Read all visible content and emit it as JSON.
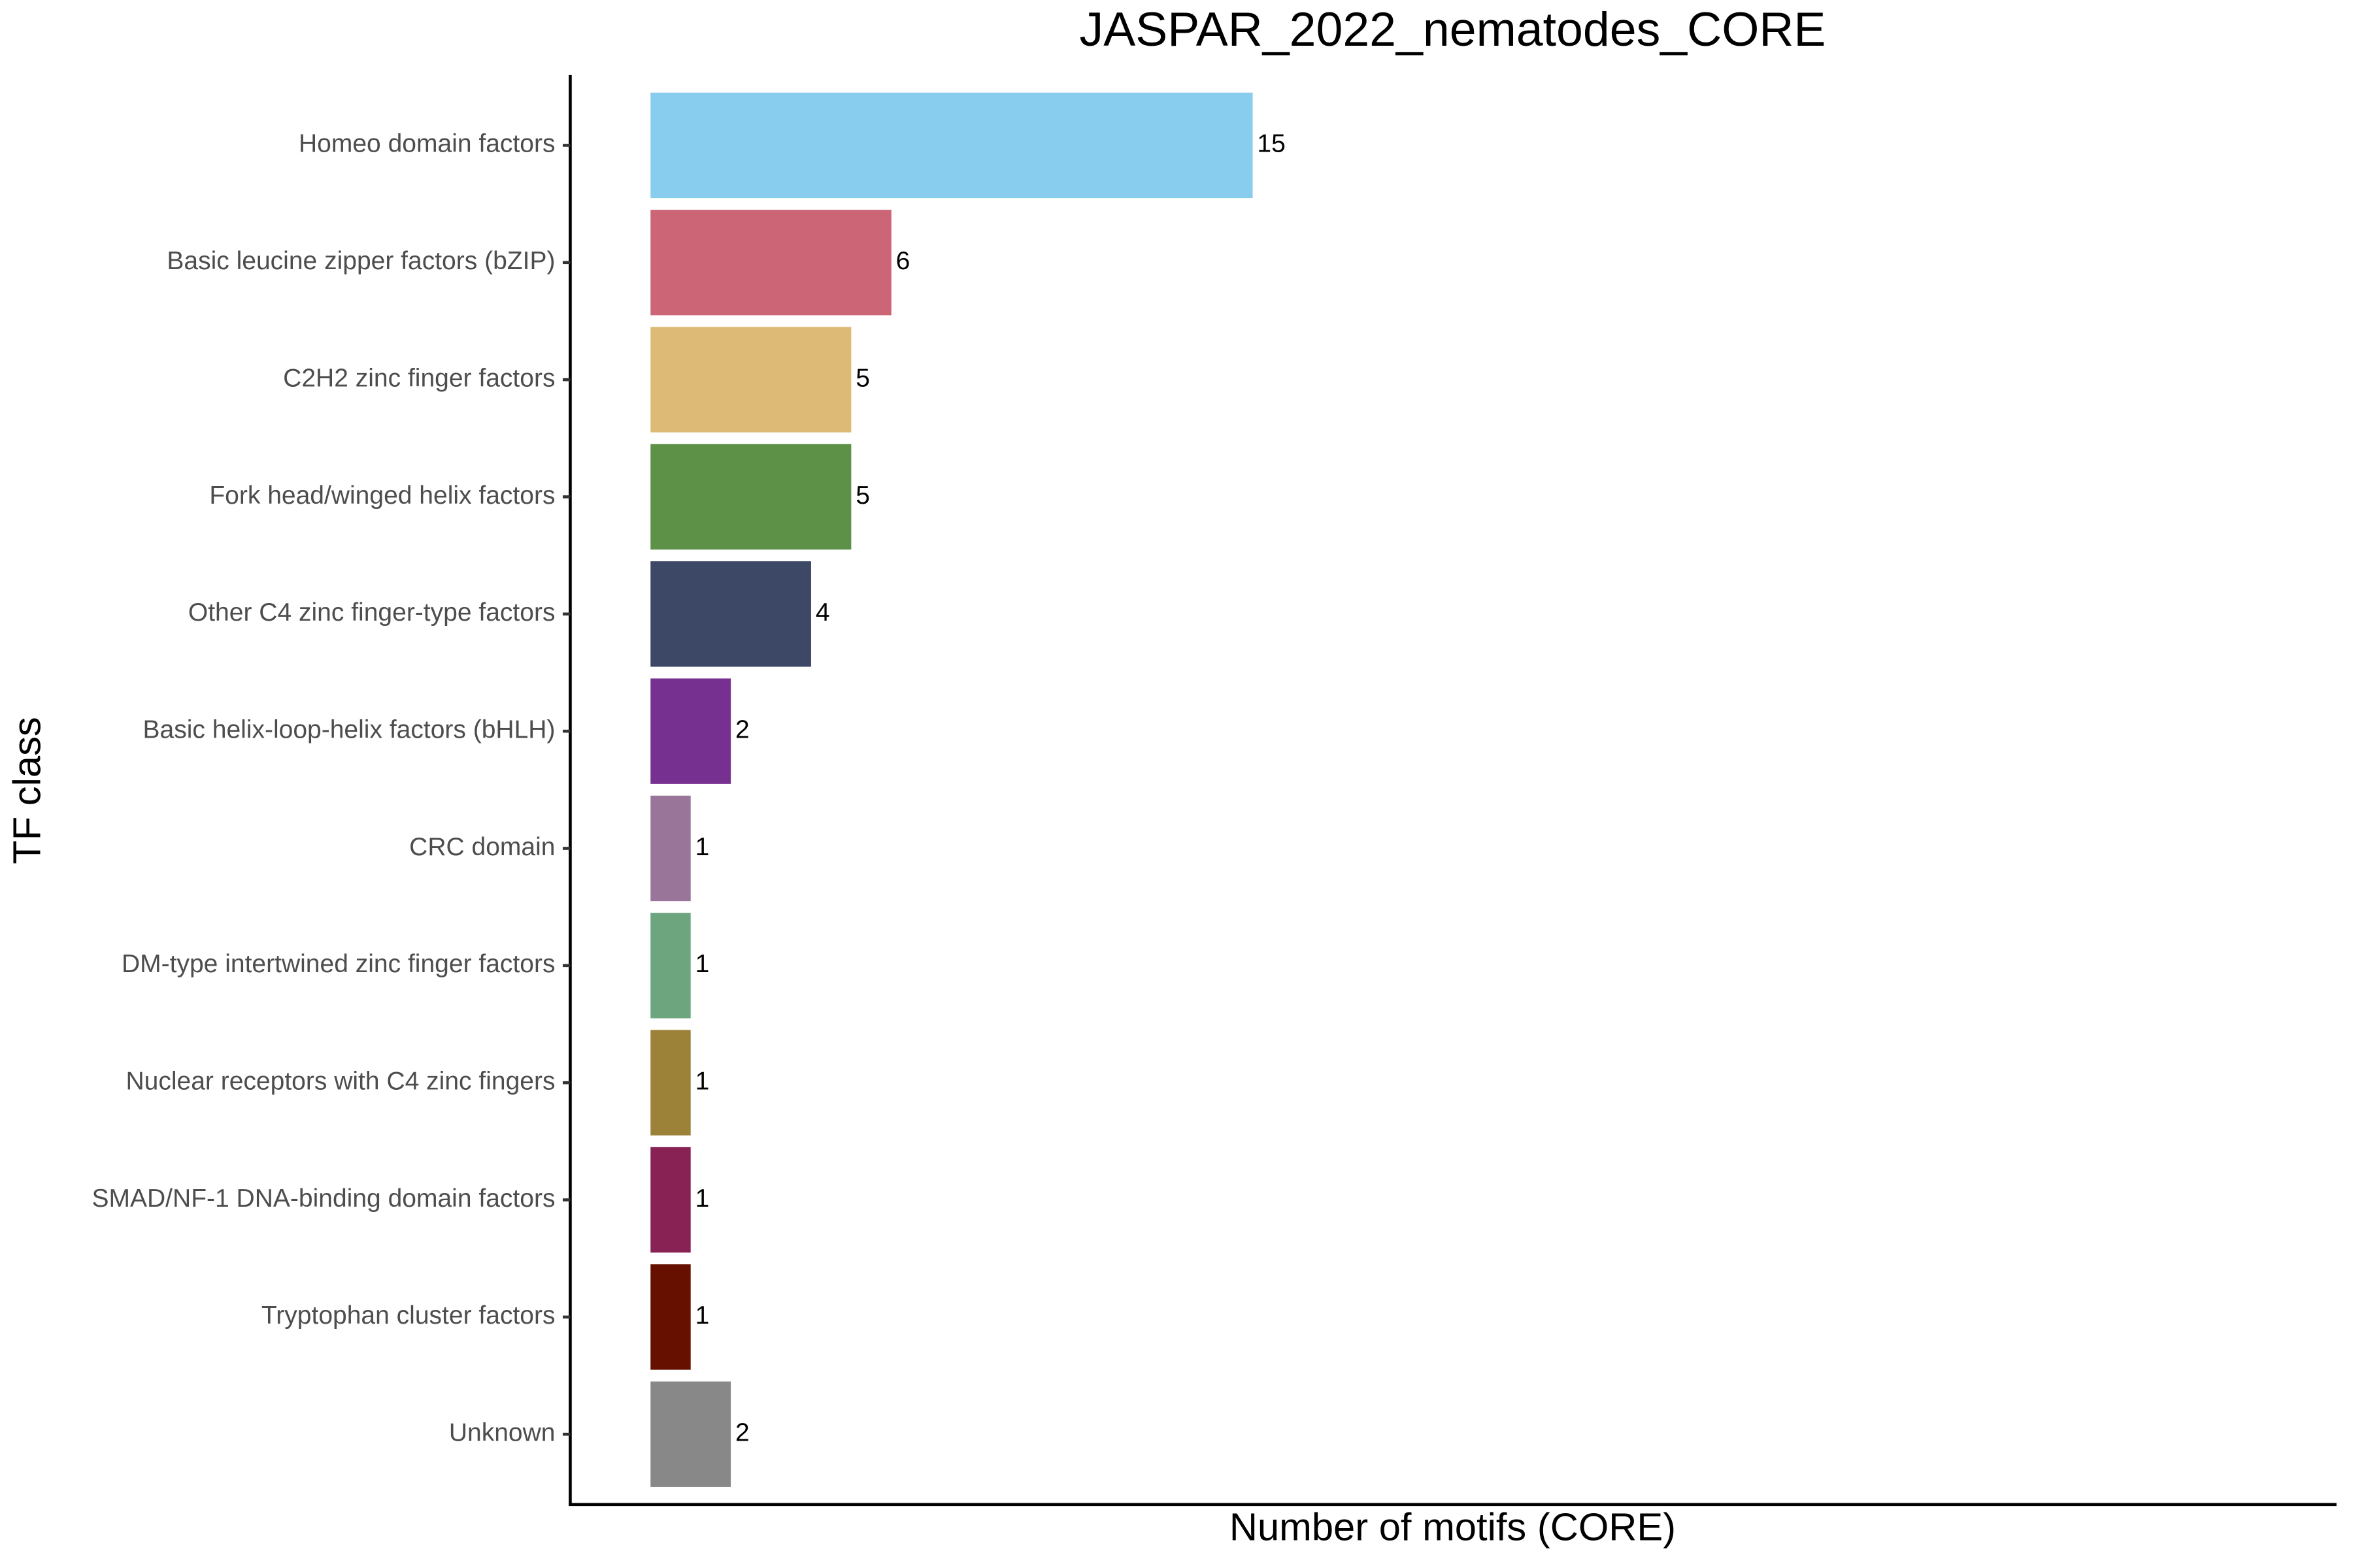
{
  "chart_data": {
    "type": "bar",
    "orientation": "horizontal",
    "title": "JASPAR_2022_nematodes_CORE",
    "x_label": "Number of motifs (CORE)",
    "y_label": "TF class",
    "categories": [
      "Homeo domain factors",
      "Basic leucine zipper factors (bZIP)",
      "C2H2 zinc finger factors",
      "Fork head/winged helix factors",
      "Other C4 zinc finger-type factors",
      "Basic helix-loop-helix factors (bHLH)",
      "CRC domain",
      "DM-type intertwined zinc finger factors",
      "Nuclear receptors with C4 zinc fingers",
      "SMAD/NF-1 DNA-binding domain factors",
      "Tryptophan cluster factors",
      "Unknown"
    ],
    "values": [
      15,
      6,
      5,
      5,
      4,
      2,
      1,
      1,
      1,
      1,
      1,
      2
    ],
    "colors": [
      "#88ccee",
      "#cc6677",
      "#ddbb77",
      "#5c9147",
      "#3d4866",
      "#763190",
      "#987599",
      "#6ca57e",
      "#9b8238",
      "#882255",
      "#661100",
      "#888888"
    ],
    "xlim": [
      -2,
      42
    ]
  }
}
